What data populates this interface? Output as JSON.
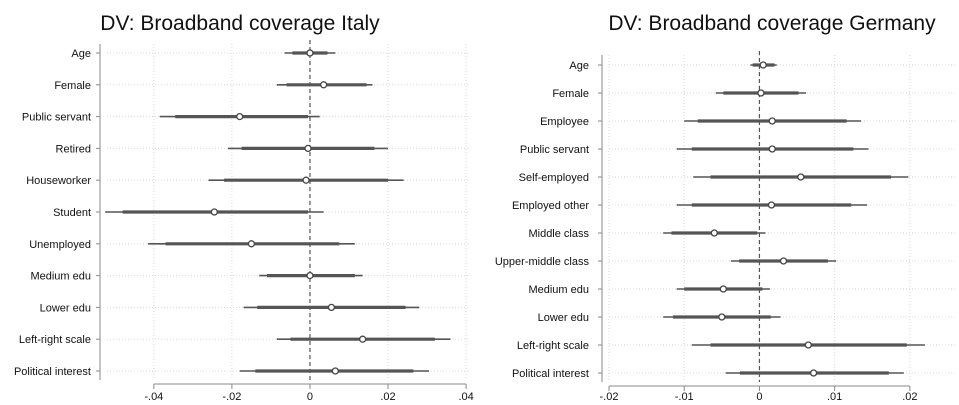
{
  "chart_data": [
    {
      "type": "coefficient-plot",
      "title": "DV: Broadband coverage Italy",
      "xlabel": "",
      "ylabel": "",
      "xlim": [
        -0.052,
        0.041
      ],
      "xticks": [
        -0.04,
        -0.02,
        0,
        0.02,
        0.04
      ],
      "xtick_labels": [
        "-.04",
        "-.02",
        "0",
        ".02",
        ".04"
      ],
      "grid": true,
      "reference_line": 0,
      "series": [
        {
          "label": "Age",
          "estimate": 0.0,
          "ci95": [
            -0.0065,
            0.0065
          ],
          "ci90": [
            -0.0045,
            0.0045
          ]
        },
        {
          "label": "Female",
          "estimate": 0.0035,
          "ci95": [
            -0.0085,
            0.016
          ],
          "ci90": [
            -0.006,
            0.0145
          ]
        },
        {
          "label": "Public servant",
          "estimate": -0.018,
          "ci95": [
            -0.0385,
            0.0025
          ],
          "ci90": [
            -0.0345,
            -0.0005
          ]
        },
        {
          "label": "Retired",
          "estimate": -0.0005,
          "ci95": [
            -0.021,
            0.02
          ],
          "ci90": [
            -0.0175,
            0.0165
          ]
        },
        {
          "label": "Houseworker",
          "estimate": -0.001,
          "ci95": [
            -0.026,
            0.024
          ],
          "ci90": [
            -0.022,
            0.02
          ]
        },
        {
          "label": "Student",
          "estimate": -0.0245,
          "ci95": [
            -0.0525,
            0.0035
          ],
          "ci90": [
            -0.048,
            -0.0005
          ]
        },
        {
          "label": "Unemployed",
          "estimate": -0.015,
          "ci95": [
            -0.0415,
            0.0115
          ],
          "ci90": [
            -0.037,
            0.0075
          ]
        },
        {
          "label": "Medium edu",
          "estimate": 0.0,
          "ci95": [
            -0.013,
            0.0135
          ],
          "ci90": [
            -0.011,
            0.0115
          ]
        },
        {
          "label": "Lower edu",
          "estimate": 0.0055,
          "ci95": [
            -0.017,
            0.028
          ],
          "ci90": [
            -0.0135,
            0.0245
          ]
        },
        {
          "label": "Left-right scale",
          "estimate": 0.0135,
          "ci95": [
            -0.0085,
            0.036
          ],
          "ci90": [
            -0.005,
            0.032
          ]
        },
        {
          "label": "Political interest",
          "estimate": 0.0065,
          "ci95": [
            -0.018,
            0.0305
          ],
          "ci90": [
            -0.014,
            0.0265
          ]
        }
      ]
    },
    {
      "type": "coefficient-plot",
      "title": "DV: Broadband coverage Germany",
      "xlabel": "",
      "ylabel": "",
      "xlim": [
        -0.02,
        0.026
      ],
      "xticks": [
        -0.02,
        -0.01,
        0,
        0.01,
        0.02
      ],
      "xtick_labels": [
        "-.02",
        "-.01",
        "0",
        ".01",
        ".02"
      ],
      "grid": true,
      "reference_line": 0,
      "series": [
        {
          "label": "Age",
          "estimate": 0.0005,
          "ci95": [
            -0.0012,
            0.0023
          ],
          "ci90": [
            -0.0009,
            0.002
          ]
        },
        {
          "label": "Female",
          "estimate": 0.0002,
          "ci95": [
            -0.0058,
            0.0062
          ],
          "ci90": [
            -0.0048,
            0.0052
          ]
        },
        {
          "label": "Employee",
          "estimate": 0.0017,
          "ci95": [
            -0.01,
            0.0135
          ],
          "ci90": [
            -0.0082,
            0.0116
          ]
        },
        {
          "label": "Public servant",
          "estimate": 0.0017,
          "ci95": [
            -0.011,
            0.0145
          ],
          "ci90": [
            -0.009,
            0.0125
          ]
        },
        {
          "label": "Self-employed",
          "estimate": 0.0055,
          "ci95": [
            -0.0088,
            0.0198
          ],
          "ci90": [
            -0.0065,
            0.0175
          ]
        },
        {
          "label": "Employed other",
          "estimate": 0.0016,
          "ci95": [
            -0.011,
            0.0143
          ],
          "ci90": [
            -0.009,
            0.0122
          ]
        },
        {
          "label": "Middle class",
          "estimate": -0.006,
          "ci95": [
            -0.0128,
            0.0008
          ],
          "ci90": [
            -0.0117,
            -0.0003
          ]
        },
        {
          "label": "Upper-middle class",
          "estimate": 0.0032,
          "ci95": [
            -0.0038,
            0.0102
          ],
          "ci90": [
            -0.0027,
            0.0091
          ]
        },
        {
          "label": "Medium edu",
          "estimate": -0.0048,
          "ci95": [
            -0.011,
            0.0014
          ],
          "ci90": [
            -0.01,
            0.0004
          ]
        },
        {
          "label": "Lower edu",
          "estimate": -0.005,
          "ci95": [
            -0.0128,
            0.0028
          ],
          "ci90": [
            -0.0115,
            0.0015
          ]
        },
        {
          "label": "Left-right scale",
          "estimate": 0.0065,
          "ci95": [
            -0.009,
            0.022
          ],
          "ci90": [
            -0.0065,
            0.0196
          ]
        },
        {
          "label": "Political interest",
          "estimate": 0.0072,
          "ci95": [
            -0.0045,
            0.0192
          ],
          "ci90": [
            -0.0026,
            0.0172
          ]
        }
      ]
    }
  ],
  "colors": {
    "ci_line": "#555555",
    "point_stroke": "#444444",
    "grid": "#d9d9d9",
    "reference": "#555555",
    "axis": "#888888"
  }
}
